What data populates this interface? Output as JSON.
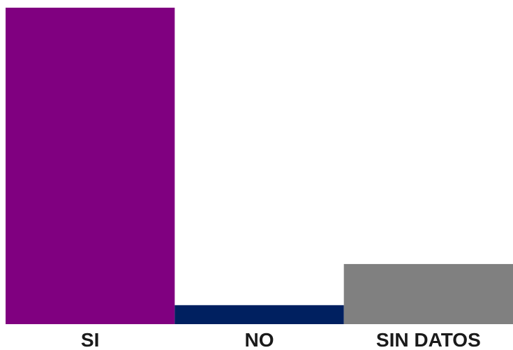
{
  "chart_data": {
    "type": "bar",
    "categories": [
      "SI",
      "NO",
      "SIN DATOS"
    ],
    "values": [
      100,
      6,
      19
    ],
    "colors": [
      "#800080",
      "#002060",
      "#808080"
    ],
    "ylim": [
      0,
      100
    ],
    "title": "",
    "xlabel": "",
    "ylabel": "",
    "grid": false,
    "legend": "none"
  }
}
